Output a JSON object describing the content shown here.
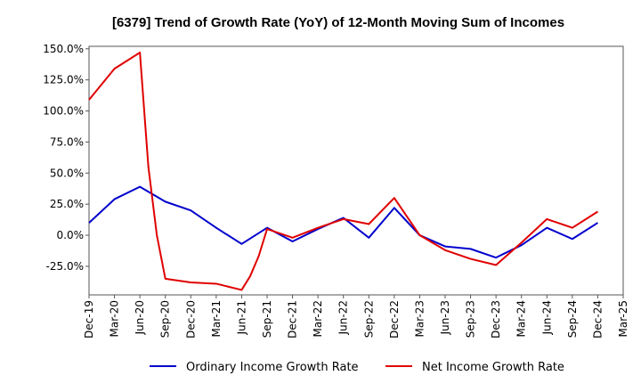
{
  "chart_data": {
    "type": "line",
    "title": "[6379]  Trend of Growth Rate (YoY) of 12-Month Moving Sum of Incomes",
    "xlabel": "",
    "ylabel": "",
    "ylim": [
      -48,
      152
    ],
    "y_ticks": [
      150,
      125,
      100,
      75,
      50,
      25,
      0,
      -25
    ],
    "y_tick_labels": [
      "150.0%",
      "125.0%",
      "100.0%",
      "75.0%",
      "50.0%",
      "25.0%",
      "0.0%",
      "-25.0%"
    ],
    "x_tick_labels": [
      "Dec-19",
      "Mar-20",
      "Jun-20",
      "Sep-20",
      "Dec-20",
      "Mar-21",
      "Jun-21",
      "Sep-21",
      "Dec-21",
      "Mar-22",
      "Jun-22",
      "Sep-22",
      "Dec-22",
      "Mar-23",
      "Jun-23",
      "Sep-23",
      "Dec-23",
      "Mar-24",
      "Jun-24",
      "Sep-24",
      "Dec-24",
      "Mar-25"
    ],
    "grid": true,
    "legend_position": "bottom",
    "series": [
      {
        "name": "Ordinary Income Growth Rate",
        "color": "#0000cc",
        "points": [
          [
            0,
            10
          ],
          [
            3,
            29
          ],
          [
            6,
            39
          ],
          [
            9,
            27
          ],
          [
            12,
            20
          ],
          [
            15,
            6
          ],
          [
            18,
            -7
          ],
          [
            21,
            6
          ],
          [
            24,
            -5
          ],
          [
            27,
            5
          ],
          [
            30,
            14
          ],
          [
            33,
            -2
          ],
          [
            36,
            22
          ],
          [
            39,
            0
          ],
          [
            42,
            -9
          ],
          [
            45,
            -11
          ],
          [
            48,
            -18
          ],
          [
            51,
            -8
          ],
          [
            54,
            6
          ],
          [
            57,
            -3
          ],
          [
            60,
            10
          ]
        ]
      },
      {
        "name": "Net Income Growth Rate",
        "color": "#e00000",
        "points": [
          [
            0,
            109
          ],
          [
            3,
            134
          ],
          [
            6,
            147
          ],
          [
            7,
            55
          ],
          [
            8,
            0
          ],
          [
            9,
            -35
          ],
          [
            12,
            -38
          ],
          [
            15,
            -39
          ],
          [
            18,
            -44
          ],
          [
            19,
            -33
          ],
          [
            20,
            -17
          ],
          [
            21,
            5
          ],
          [
            24,
            -2
          ],
          [
            27,
            6
          ],
          [
            30,
            13
          ],
          [
            33,
            9
          ],
          [
            36,
            30
          ],
          [
            39,
            0
          ],
          [
            42,
            -12
          ],
          [
            45,
            -19
          ],
          [
            48,
            -24
          ],
          [
            51,
            -6
          ],
          [
            54,
            13
          ],
          [
            57,
            6
          ],
          [
            60,
            19
          ]
        ]
      }
    ]
  }
}
